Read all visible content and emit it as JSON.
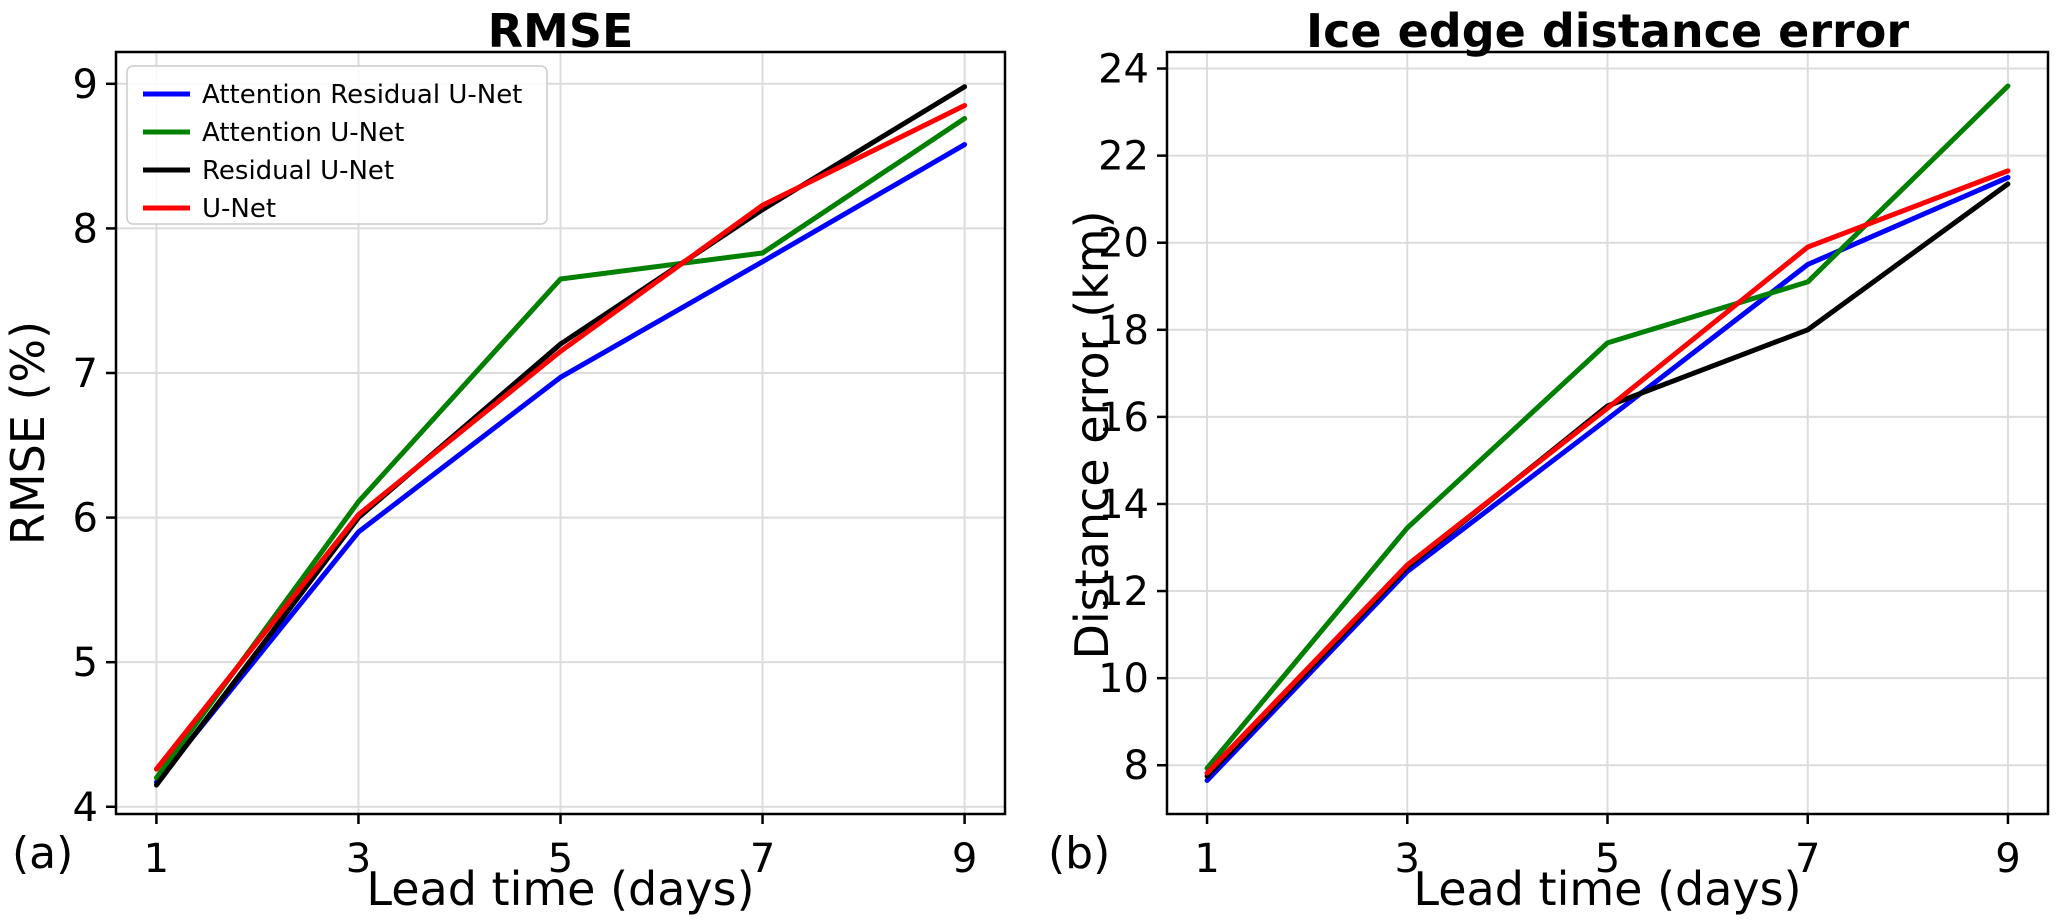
{
  "figure": {
    "panel_a_label": "(a)",
    "panel_b_label": "(b)"
  },
  "chart_data": [
    {
      "type": "line",
      "title": "RMSE",
      "xlabel": "Lead time (days)",
      "ylabel": "RMSE (%)",
      "panel_label": "(a)",
      "x": [
        1,
        3,
        5,
        7,
        9
      ],
      "xticks": [
        1,
        3,
        5,
        7,
        9
      ],
      "yticks": [
        4,
        5,
        6,
        7,
        8,
        9
      ],
      "xlim": [
        0.6,
        9.4
      ],
      "ylim": [
        3.95,
        9.22
      ],
      "grid": true,
      "legend_position": "upper-left",
      "series": [
        {
          "name": "Attention Residual U-Net",
          "color": "#0000ff",
          "values": [
            4.17,
            5.9,
            6.97,
            7.77,
            8.58
          ]
        },
        {
          "name": "Attention U-Net",
          "color": "#008000",
          "values": [
            4.2,
            6.11,
            7.65,
            7.83,
            8.76
          ]
        },
        {
          "name": "Residual U-Net",
          "color": "#000000",
          "values": [
            4.15,
            6.0,
            7.2,
            8.13,
            8.98
          ]
        },
        {
          "name": "U-Net",
          "color": "#ff0000",
          "values": [
            4.26,
            6.02,
            7.15,
            8.16,
            8.85
          ]
        }
      ]
    },
    {
      "type": "line",
      "title": "Ice edge distance error",
      "xlabel": "Lead time (days)",
      "ylabel": "Distance error (km)",
      "panel_label": "(b)",
      "x": [
        1,
        3,
        5,
        7,
        9
      ],
      "xticks": [
        1,
        3,
        5,
        7,
        9
      ],
      "yticks": [
        8,
        10,
        12,
        14,
        16,
        18,
        20,
        22,
        24
      ],
      "xlim": [
        0.6,
        9.4
      ],
      "ylim": [
        6.88,
        24.38
      ],
      "grid": true,
      "legend_position": "none",
      "series": [
        {
          "name": "Attention Residual U-Net",
          "color": "#0000ff",
          "values": [
            7.65,
            12.45,
            15.95,
            19.5,
            21.5
          ]
        },
        {
          "name": "Attention U-Net",
          "color": "#008000",
          "values": [
            7.93,
            13.45,
            17.7,
            19.1,
            23.6
          ]
        },
        {
          "name": "Residual U-Net",
          "color": "#000000",
          "values": [
            7.75,
            12.55,
            16.25,
            18.0,
            21.35
          ]
        },
        {
          "name": "U-Net",
          "color": "#ff0000",
          "values": [
            7.82,
            12.6,
            16.2,
            19.9,
            21.65
          ]
        }
      ]
    }
  ]
}
